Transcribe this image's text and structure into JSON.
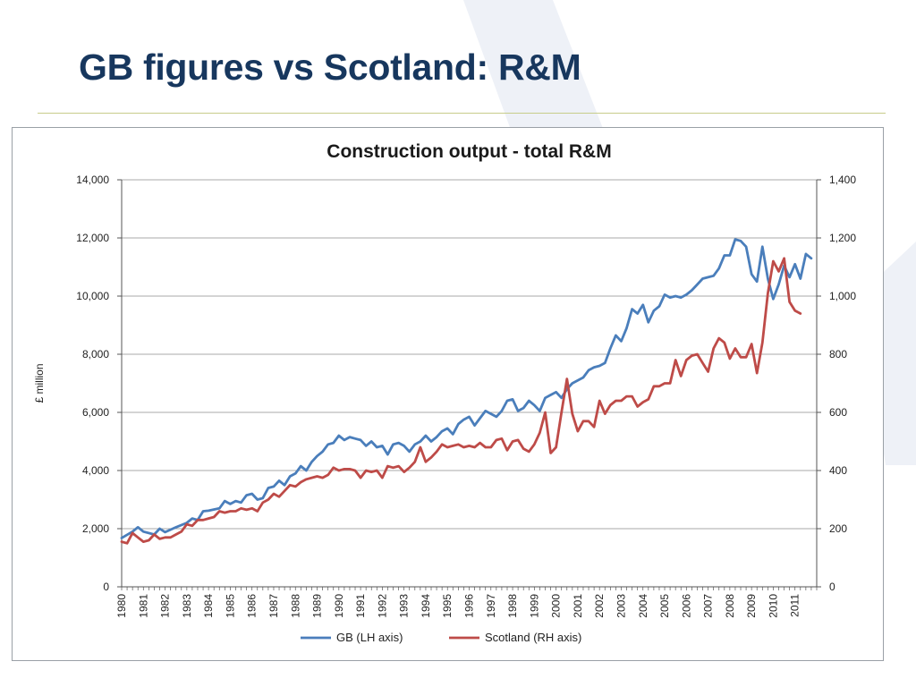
{
  "slide": {
    "title": "GB figures vs Scotland: R&M"
  },
  "colors": {
    "title": "#17375e",
    "gb": "#4a7ebb",
    "scotland": "#be4b48",
    "grid": "#8c8c8c",
    "watermark": "#eef1f7"
  },
  "chart_data": {
    "type": "line",
    "title": "Construction output - total R&M",
    "ylabel": "£ million",
    "xlabel": "",
    "ylim_left": [
      0,
      14000
    ],
    "ylim_right": [
      0,
      1400
    ],
    "left_ticks": [
      "0",
      "2,000",
      "4,000",
      "6,000",
      "8,000",
      "10,000",
      "12,000",
      "14,000"
    ],
    "right_ticks": [
      "0",
      "200",
      "400",
      "600",
      "800",
      "1,000",
      "1,200",
      "1,400"
    ],
    "x_ticks": [
      "1980",
      "1981",
      "1982",
      "1983",
      "1984",
      "1985",
      "1986",
      "1987",
      "1988",
      "1989",
      "1990",
      "1991",
      "1992",
      "1993",
      "1994",
      "1995",
      "1996",
      "1997",
      "1998",
      "1999",
      "2000",
      "2001",
      "2002",
      "2003",
      "2004",
      "2005",
      "2006",
      "2007",
      "2008",
      "2009",
      "2010",
      "2011"
    ],
    "xlim": [
      1980,
      2012
    ],
    "grid": "horizontal",
    "legend_position": "bottom",
    "series": [
      {
        "name": "GB (LH axis)",
        "axis": "left",
        "points": [
          [
            1980.0,
            1680
          ],
          [
            1980.5,
            1900
          ],
          [
            1980.75,
            2050
          ],
          [
            1981.0,
            1900
          ],
          [
            1981.5,
            1800
          ],
          [
            1981.75,
            2000
          ],
          [
            1982.0,
            1880
          ],
          [
            1982.5,
            2050
          ],
          [
            1983.0,
            2200
          ],
          [
            1983.25,
            2350
          ],
          [
            1983.5,
            2300
          ],
          [
            1983.75,
            2600
          ],
          [
            1984.0,
            2620
          ],
          [
            1984.5,
            2700
          ],
          [
            1984.75,
            2950
          ],
          [
            1985.0,
            2850
          ],
          [
            1985.25,
            2950
          ],
          [
            1985.5,
            2900
          ],
          [
            1985.75,
            3150
          ],
          [
            1986.0,
            3200
          ],
          [
            1986.25,
            3000
          ],
          [
            1986.5,
            3050
          ],
          [
            1986.75,
            3400
          ],
          [
            1987.0,
            3450
          ],
          [
            1987.25,
            3650
          ],
          [
            1987.5,
            3500
          ],
          [
            1987.75,
            3800
          ],
          [
            1988.0,
            3900
          ],
          [
            1988.25,
            4150
          ],
          [
            1988.5,
            4000
          ],
          [
            1988.75,
            4300
          ],
          [
            1989.0,
            4500
          ],
          [
            1989.25,
            4650
          ],
          [
            1989.5,
            4900
          ],
          [
            1989.75,
            4950
          ],
          [
            1990.0,
            5200
          ],
          [
            1990.25,
            5050
          ],
          [
            1990.5,
            5150
          ],
          [
            1990.75,
            5100
          ],
          [
            1991.0,
            5050
          ],
          [
            1991.25,
            4850
          ],
          [
            1991.5,
            5000
          ],
          [
            1991.75,
            4800
          ],
          [
            1992.0,
            4850
          ],
          [
            1992.25,
            4550
          ],
          [
            1992.5,
            4900
          ],
          [
            1992.75,
            4950
          ],
          [
            1993.0,
            4850
          ],
          [
            1993.25,
            4650
          ],
          [
            1993.5,
            4900
          ],
          [
            1993.75,
            5000
          ],
          [
            1994.0,
            5200
          ],
          [
            1994.25,
            5000
          ],
          [
            1994.5,
            5150
          ],
          [
            1994.75,
            5350
          ],
          [
            1995.0,
            5450
          ],
          [
            1995.25,
            5250
          ],
          [
            1995.5,
            5600
          ],
          [
            1995.75,
            5750
          ],
          [
            1996.0,
            5850
          ],
          [
            1996.25,
            5550
          ],
          [
            1996.5,
            5800
          ],
          [
            1996.75,
            6050
          ],
          [
            1997.0,
            5950
          ],
          [
            1997.25,
            5850
          ],
          [
            1997.5,
            6050
          ],
          [
            1997.75,
            6400
          ],
          [
            1998.0,
            6450
          ],
          [
            1998.25,
            6050
          ],
          [
            1998.5,
            6150
          ],
          [
            1998.75,
            6400
          ],
          [
            1999.0,
            6250
          ],
          [
            1999.25,
            6050
          ],
          [
            1999.5,
            6500
          ],
          [
            1999.75,
            6600
          ],
          [
            2000.0,
            6700
          ],
          [
            2000.25,
            6500
          ],
          [
            2000.5,
            6800
          ],
          [
            2000.75,
            7000
          ],
          [
            2001.0,
            7100
          ],
          [
            2001.25,
            7200
          ],
          [
            2001.5,
            7450
          ],
          [
            2001.75,
            7550
          ],
          [
            2002.0,
            7600
          ],
          [
            2002.25,
            7700
          ],
          [
            2002.5,
            8200
          ],
          [
            2002.75,
            8650
          ],
          [
            2003.0,
            8450
          ],
          [
            2003.25,
            8900
          ],
          [
            2003.5,
            9550
          ],
          [
            2003.75,
            9400
          ],
          [
            2004.0,
            9700
          ],
          [
            2004.25,
            9100
          ],
          [
            2004.5,
            9500
          ],
          [
            2004.75,
            9650
          ],
          [
            2005.0,
            10050
          ],
          [
            2005.25,
            9950
          ],
          [
            2005.5,
            10000
          ],
          [
            2005.75,
            9950
          ],
          [
            2006.0,
            10050
          ],
          [
            2006.25,
            10200
          ],
          [
            2006.5,
            10400
          ],
          [
            2006.75,
            10600
          ],
          [
            2007.0,
            10650
          ],
          [
            2007.25,
            10700
          ],
          [
            2007.5,
            10950
          ],
          [
            2007.75,
            11400
          ],
          [
            2008.0,
            11400
          ],
          [
            2008.25,
            11950
          ],
          [
            2008.5,
            11900
          ],
          [
            2008.75,
            11700
          ],
          [
            2009.0,
            10750
          ],
          [
            2009.25,
            10500
          ],
          [
            2009.5,
            11700
          ],
          [
            2009.75,
            10600
          ],
          [
            2010.0,
            9900
          ],
          [
            2010.25,
            10400
          ],
          [
            2010.5,
            11050
          ],
          [
            2010.75,
            10650
          ],
          [
            2011.0,
            11100
          ],
          [
            2011.25,
            10600
          ],
          [
            2011.5,
            11450
          ],
          [
            2011.75,
            11300
          ]
        ]
      },
      {
        "name": "Scotland (RH axis)",
        "axis": "right",
        "points": [
          [
            1980.0,
            155
          ],
          [
            1980.25,
            150
          ],
          [
            1980.5,
            185
          ],
          [
            1980.75,
            170
          ],
          [
            1981.0,
            155
          ],
          [
            1981.25,
            160
          ],
          [
            1981.5,
            180
          ],
          [
            1981.75,
            165
          ],
          [
            1982.0,
            170
          ],
          [
            1982.25,
            170
          ],
          [
            1982.5,
            180
          ],
          [
            1982.75,
            190
          ],
          [
            1983.0,
            215
          ],
          [
            1983.25,
            210
          ],
          [
            1983.5,
            230
          ],
          [
            1983.75,
            230
          ],
          [
            1984.0,
            235
          ],
          [
            1984.25,
            240
          ],
          [
            1984.5,
            260
          ],
          [
            1984.75,
            255
          ],
          [
            1985.0,
            260
          ],
          [
            1985.25,
            260
          ],
          [
            1985.5,
            270
          ],
          [
            1985.75,
            265
          ],
          [
            1986.0,
            270
          ],
          [
            1986.25,
            260
          ],
          [
            1986.5,
            290
          ],
          [
            1986.75,
            300
          ],
          [
            1987.0,
            320
          ],
          [
            1987.25,
            310
          ],
          [
            1987.5,
            330
          ],
          [
            1987.75,
            350
          ],
          [
            1988.0,
            345
          ],
          [
            1988.25,
            360
          ],
          [
            1988.5,
            370
          ],
          [
            1988.75,
            375
          ],
          [
            1989.0,
            380
          ],
          [
            1989.25,
            375
          ],
          [
            1989.5,
            385
          ],
          [
            1989.75,
            410
          ],
          [
            1990.0,
            400
          ],
          [
            1990.25,
            405
          ],
          [
            1990.5,
            405
          ],
          [
            1990.75,
            400
          ],
          [
            1991.0,
            375
          ],
          [
            1991.25,
            400
          ],
          [
            1991.5,
            395
          ],
          [
            1991.75,
            400
          ],
          [
            1992.0,
            375
          ],
          [
            1992.25,
            415
          ],
          [
            1992.5,
            410
          ],
          [
            1992.75,
            415
          ],
          [
            1993.0,
            395
          ],
          [
            1993.25,
            410
          ],
          [
            1993.5,
            430
          ],
          [
            1993.75,
            480
          ],
          [
            1994.0,
            430
          ],
          [
            1994.25,
            445
          ],
          [
            1994.5,
            465
          ],
          [
            1994.75,
            490
          ],
          [
            1995.0,
            480
          ],
          [
            1995.25,
            485
          ],
          [
            1995.5,
            490
          ],
          [
            1995.75,
            480
          ],
          [
            1996.0,
            485
          ],
          [
            1996.25,
            480
          ],
          [
            1996.5,
            495
          ],
          [
            1996.75,
            480
          ],
          [
            1997.0,
            480
          ],
          [
            1997.25,
            505
          ],
          [
            1997.5,
            510
          ],
          [
            1997.75,
            470
          ],
          [
            1998.0,
            500
          ],
          [
            1998.25,
            505
          ],
          [
            1998.5,
            475
          ],
          [
            1998.75,
            465
          ],
          [
            1999.0,
            490
          ],
          [
            1999.25,
            530
          ],
          [
            1999.5,
            600
          ],
          [
            1999.75,
            460
          ],
          [
            2000.0,
            480
          ],
          [
            2000.25,
            600
          ],
          [
            2000.5,
            715
          ],
          [
            2000.75,
            595
          ],
          [
            2001.0,
            535
          ],
          [
            2001.25,
            570
          ],
          [
            2001.5,
            570
          ],
          [
            2001.75,
            550
          ],
          [
            2002.0,
            640
          ],
          [
            2002.25,
            595
          ],
          [
            2002.5,
            625
          ],
          [
            2002.75,
            640
          ],
          [
            2003.0,
            640
          ],
          [
            2003.25,
            655
          ],
          [
            2003.5,
            655
          ],
          [
            2003.75,
            620
          ],
          [
            2004.0,
            635
          ],
          [
            2004.25,
            645
          ],
          [
            2004.5,
            690
          ],
          [
            2004.75,
            690
          ],
          [
            2005.0,
            700
          ],
          [
            2005.25,
            700
          ],
          [
            2005.5,
            780
          ],
          [
            2005.75,
            725
          ],
          [
            2006.0,
            780
          ],
          [
            2006.25,
            795
          ],
          [
            2006.5,
            800
          ],
          [
            2006.75,
            770
          ],
          [
            2007.0,
            740
          ],
          [
            2007.25,
            820
          ],
          [
            2007.5,
            855
          ],
          [
            2007.75,
            840
          ],
          [
            2008.0,
            785
          ],
          [
            2008.25,
            820
          ],
          [
            2008.5,
            790
          ],
          [
            2008.75,
            790
          ],
          [
            2009.0,
            835
          ],
          [
            2009.25,
            735
          ],
          [
            2009.5,
            840
          ],
          [
            2009.75,
            1010
          ],
          [
            2010.0,
            1120
          ],
          [
            2010.25,
            1085
          ],
          [
            2010.5,
            1130
          ],
          [
            2010.75,
            980
          ],
          [
            2011.0,
            950
          ],
          [
            2011.25,
            940
          ]
        ]
      }
    ]
  }
}
